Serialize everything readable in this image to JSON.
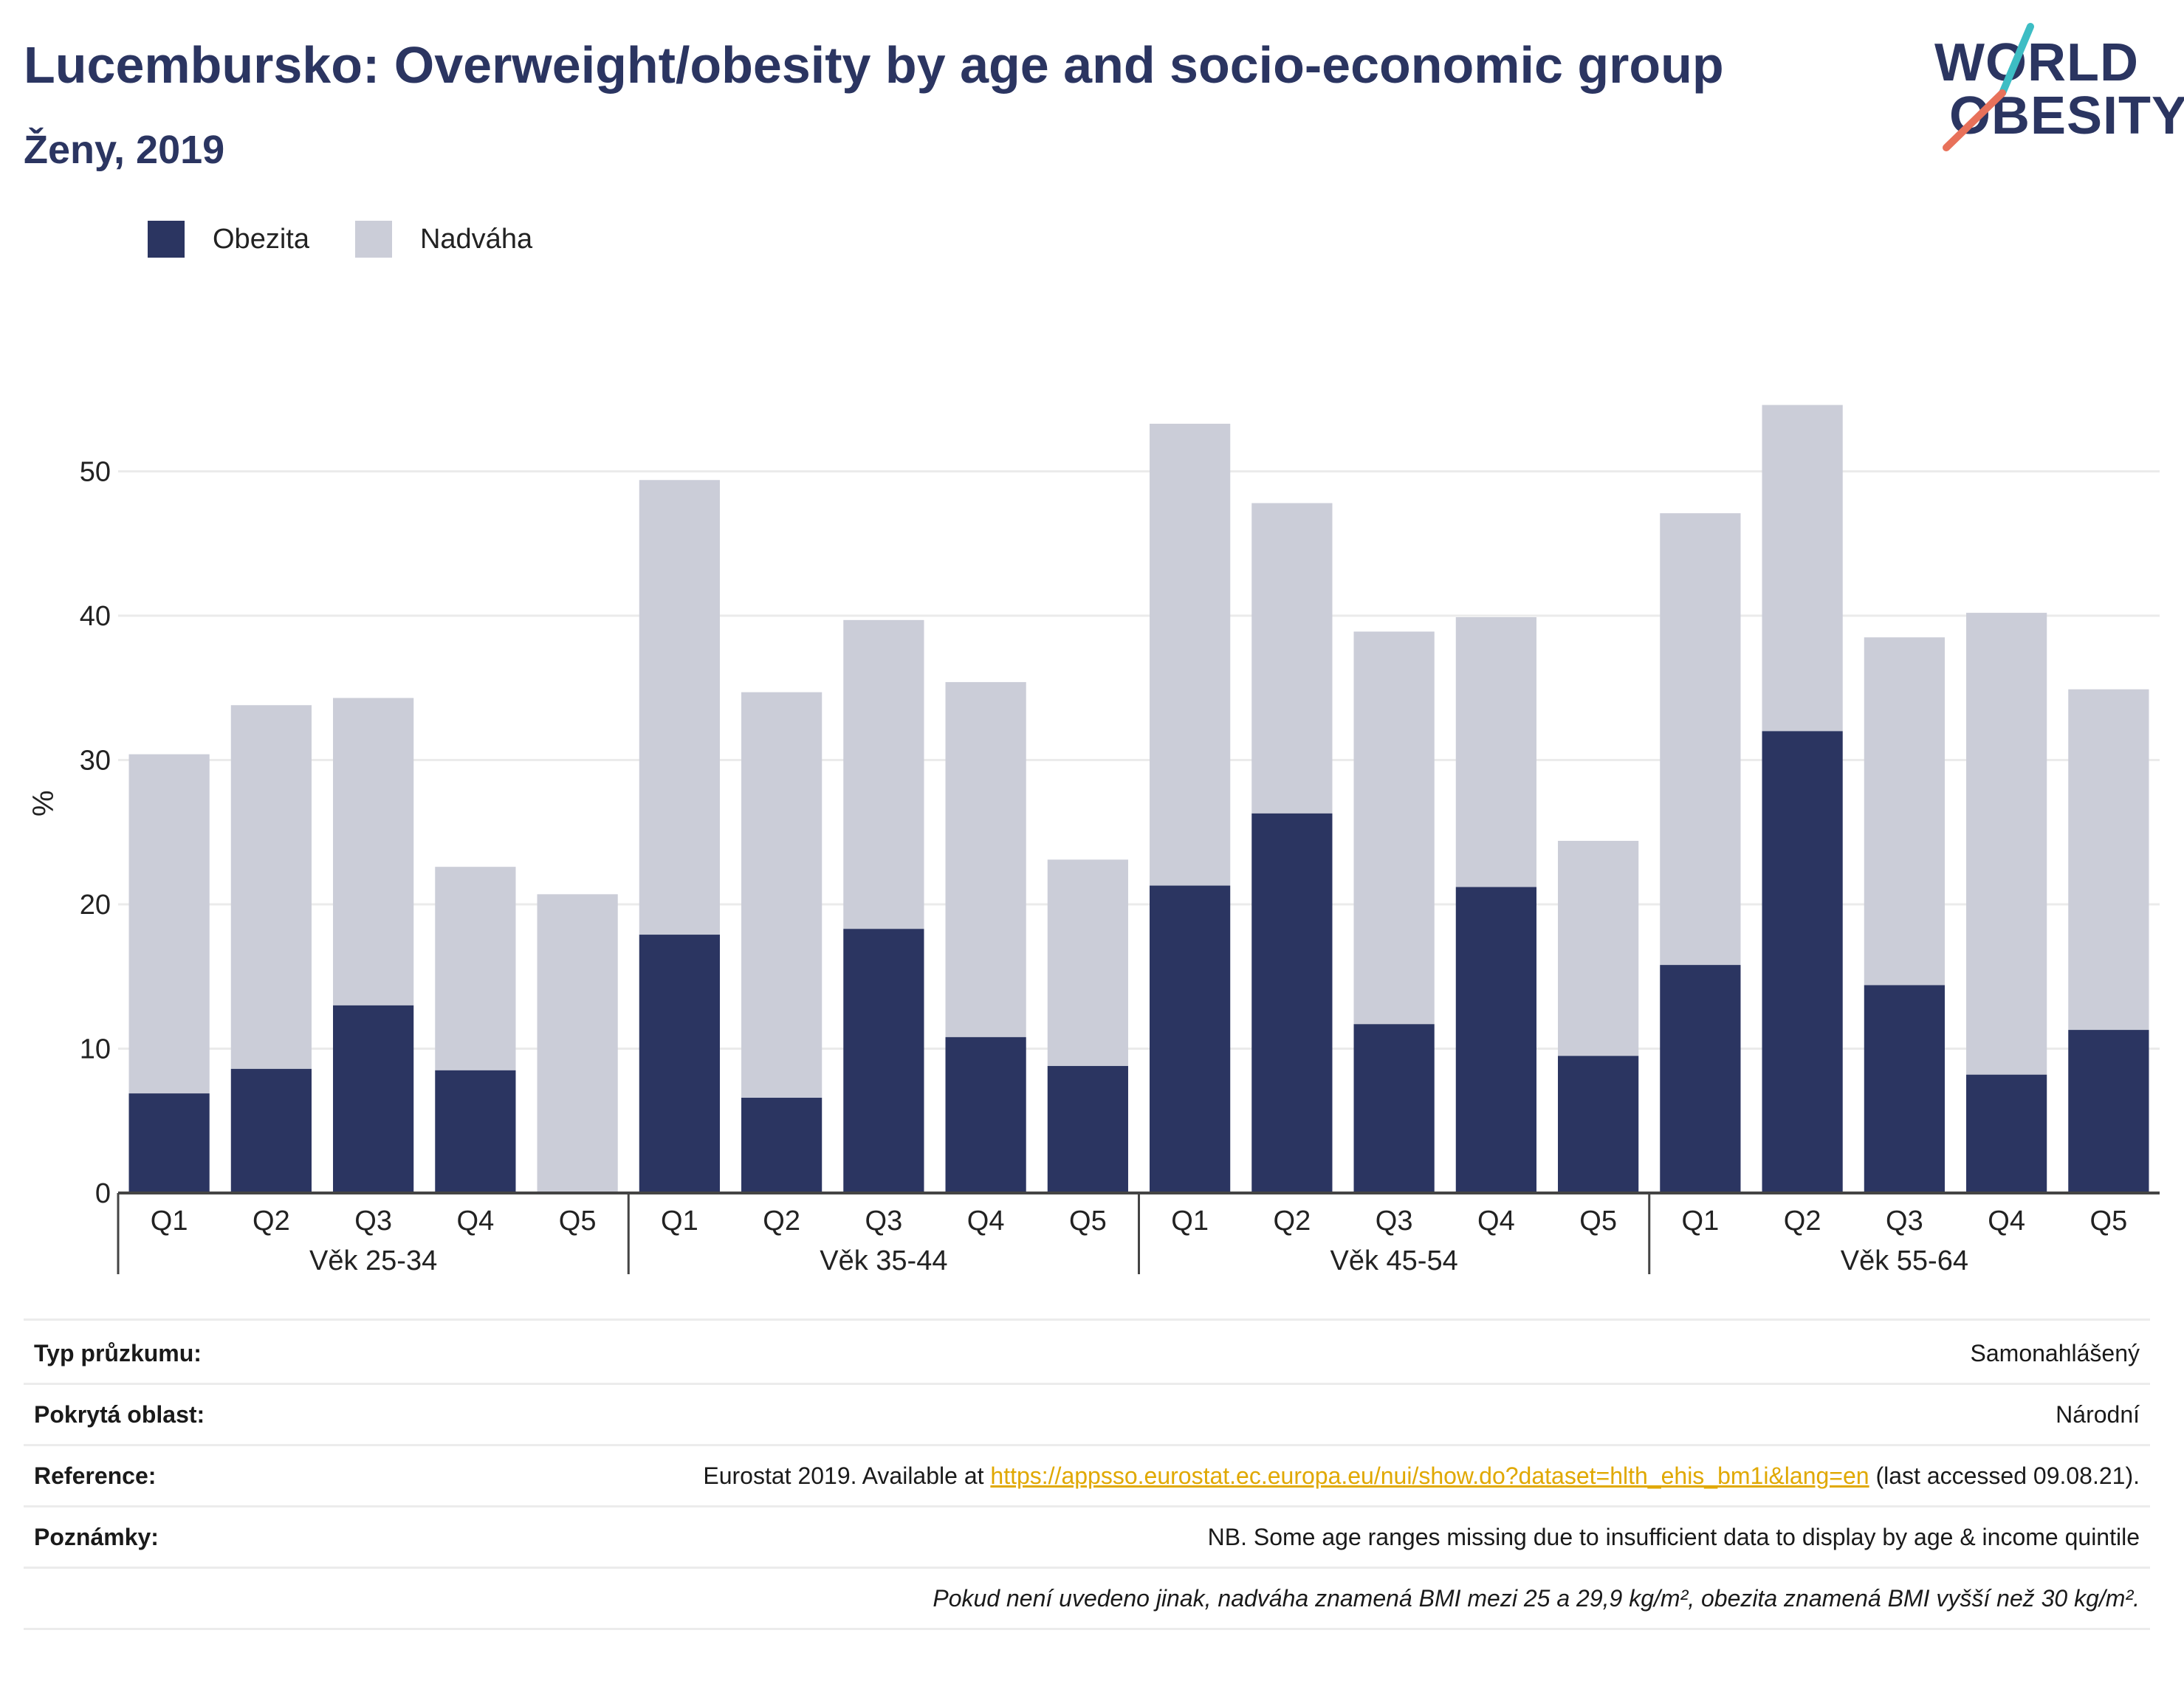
{
  "header": {
    "title": "Lucembursko: Overweight/obesity by age and socio-economic group",
    "subtitle": "Ženy, 2019"
  },
  "logo": {
    "line1": "WORLD",
    "line2": "OBESITY",
    "accent_colors": [
      "#3dbdc4",
      "#e8715a"
    ]
  },
  "legend": {
    "items": [
      {
        "label": "Obezita",
        "color": "#2b3561"
      },
      {
        "label": "Nadváha",
        "color": "#cbcdd8"
      }
    ]
  },
  "chart_data": {
    "type": "bar",
    "stacked": true,
    "ylabel": "%",
    "ylim": [
      0,
      57
    ],
    "yticks": [
      0,
      10,
      20,
      30,
      40,
      50
    ],
    "grid": true,
    "legend_position": "top-left",
    "groups": [
      {
        "label": "Věk 25-34",
        "categories": [
          "Q1",
          "Q2",
          "Q3",
          "Q4",
          "Q5"
        ],
        "obezita": [
          6.9,
          8.6,
          13.0,
          8.5,
          0
        ],
        "total": [
          30.4,
          33.8,
          34.3,
          22.6,
          20.7
        ]
      },
      {
        "label": "Věk 35-44",
        "categories": [
          "Q1",
          "Q2",
          "Q3",
          "Q4",
          "Q5"
        ],
        "obezita": [
          17.9,
          6.6,
          18.3,
          10.8,
          8.8
        ],
        "total": [
          49.4,
          34.7,
          39.7,
          35.4,
          23.1
        ]
      },
      {
        "label": "Věk 45-54",
        "categories": [
          "Q1",
          "Q2",
          "Q3",
          "Q4",
          "Q5"
        ],
        "obezita": [
          21.3,
          26.3,
          11.7,
          21.2,
          9.5
        ],
        "total": [
          53.3,
          47.8,
          38.9,
          39.9,
          24.4
        ]
      },
      {
        "label": "Věk 55-64",
        "categories": [
          "Q1",
          "Q2",
          "Q3",
          "Q4",
          "Q5"
        ],
        "obezita": [
          15.8,
          32.0,
          14.4,
          8.2,
          11.3
        ],
        "total": [
          47.1,
          54.6,
          38.5,
          40.2,
          34.9
        ]
      }
    ],
    "series": [
      {
        "name": "Obezita",
        "color": "#2b3561"
      },
      {
        "name": "Nadváha",
        "color": "#cbcdd8"
      }
    ]
  },
  "meta": {
    "survey_label": "Typ průzkumu:",
    "survey_value": "Samonahlášený",
    "area_label": "Pokrytá oblast:",
    "area_value": "Národní",
    "reference_label": "Reference:",
    "reference_prefix": "Eurostat 2019. Available at ",
    "reference_link": "https://appsso.eurostat.ec.europa.eu/nui/show.do?dataset=hlth_ehis_bm1i&lang=en",
    "reference_suffix": " (last accessed 09.08.21).",
    "notes_label": "Poznámky:",
    "notes_value": "NB. Some age ranges missing due to insufficient data to display by age & income quintile",
    "definition_note": "Pokud není uvedeno jinak, nadváha znamená BMI mezi 25 a 29,9 kg/m², obezita znamená BMI vyšší než 30 kg/m²."
  }
}
